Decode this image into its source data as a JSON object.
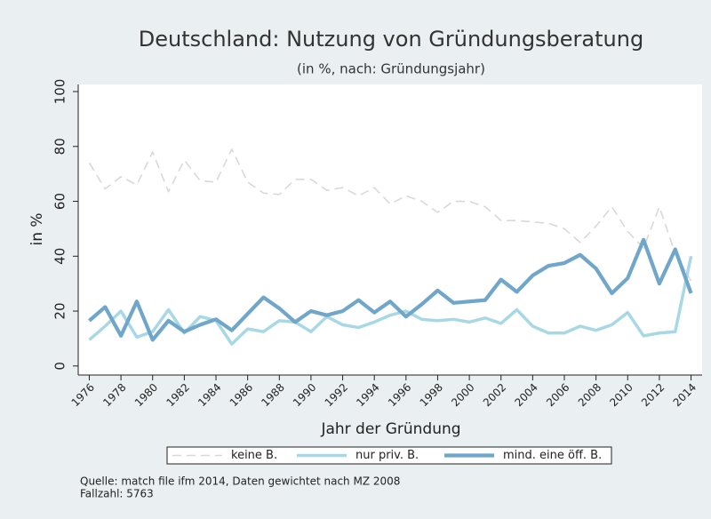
{
  "chart_data": {
    "type": "line",
    "title": "Deutschland: Nutzung von Gründungsberatung",
    "subtitle": "(in %, nach: Gründungsjahr)",
    "xlabel": "Jahr der Gründung",
    "ylabel": "in %",
    "x": [
      1976,
      1977,
      1978,
      1979,
      1980,
      1981,
      1982,
      1983,
      1984,
      1985,
      1986,
      1987,
      1988,
      1989,
      1990,
      1991,
      1992,
      1993,
      1994,
      1995,
      1996,
      1997,
      1998,
      1999,
      2000,
      2001,
      2002,
      2003,
      2004,
      2005,
      2006,
      2007,
      2008,
      2009,
      2010,
      2011,
      2012,
      2013,
      2014
    ],
    "series": [
      {
        "name": "keine B.",
        "color": "#d9d9d9",
        "dashed": true,
        "values": [
          74,
          64.5,
          69,
          66,
          78,
          63.5,
          75,
          67.5,
          67,
          79,
          67,
          63,
          62.5,
          68,
          68,
          64,
          65,
          62,
          65,
          59,
          62,
          60,
          56,
          60,
          60,
          58,
          53,
          53,
          52.5,
          52,
          50,
          45,
          51,
          58,
          49,
          43,
          58,
          41,
          31
        ]
      },
      {
        "name": "nur priv. B.",
        "color": "#a8d8e6",
        "dashed": false,
        "values": [
          9.5,
          14.5,
          20,
          10.5,
          12.5,
          20.5,
          12,
          18,
          16.5,
          8,
          13.5,
          12.5,
          16.5,
          16,
          12.5,
          18,
          15,
          14,
          16,
          18.5,
          20,
          17,
          16.5,
          17,
          16,
          17.5,
          15.5,
          20.5,
          14.5,
          12,
          12,
          14.5,
          13,
          15,
          19.5,
          11,
          12,
          12.5,
          40
        ]
      },
      {
        "name": "mind. eine öff. B.",
        "color": "#6fa6c9",
        "dashed": false,
        "values": [
          16.5,
          21.5,
          11,
          23.5,
          9.5,
          16.5,
          12.5,
          15,
          17,
          13,
          19,
          25,
          21,
          16,
          20,
          18.5,
          20,
          24,
          19.5,
          23.5,
          18,
          22.5,
          27.5,
          23,
          23.5,
          24,
          31.5,
          27,
          33,
          36.5,
          37.5,
          40.5,
          35.5,
          26.5,
          32,
          46,
          30,
          42.5,
          26.5
        ]
      }
    ],
    "xlim": [
      1975.3,
      2014.7
    ],
    "xticks": [
      1976,
      1978,
      1980,
      1982,
      1984,
      1986,
      1988,
      1990,
      1992,
      1994,
      1996,
      1998,
      2000,
      2002,
      2004,
      2006,
      2008,
      2010,
      2012,
      2014
    ],
    "ylim": [
      -3.3,
      102.6
    ],
    "yticks": [
      0,
      20,
      40,
      60,
      80,
      100
    ],
    "grid": false,
    "legend": "bottom",
    "notes": [
      "Quelle: match file ifm 2014, Daten gewichtet nach MZ 2008",
      "Fallzahl: 5763"
    ]
  }
}
